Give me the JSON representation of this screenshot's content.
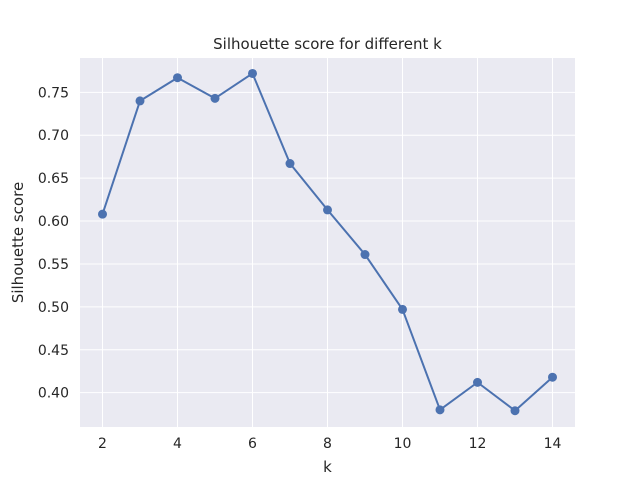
{
  "chart_data": {
    "type": "line",
    "title": "Silhouette score for different k",
    "xlabel": "k",
    "ylabel": "Silhouette score",
    "x": [
      2,
      3,
      4,
      5,
      6,
      7,
      8,
      9,
      10,
      11,
      12,
      13,
      14
    ],
    "series": [
      {
        "values": [
          0.608,
          0.74,
          0.767,
          0.743,
          0.772,
          0.667,
          0.613,
          0.561,
          0.497,
          0.38,
          0.412,
          0.379,
          0.418
        ],
        "color": "#4c72b0",
        "marker": "circle"
      }
    ],
    "xlim": [
      1.4,
      14.6
    ],
    "ylim": [
      0.36,
      0.79
    ],
    "xticks": [
      2,
      4,
      6,
      8,
      10,
      12,
      14
    ],
    "yticks": [
      "0.40",
      "0.45",
      "0.50",
      "0.55",
      "0.60",
      "0.65",
      "0.70",
      "0.75"
    ],
    "grid": true,
    "style": "seaborn-darkgrid"
  }
}
